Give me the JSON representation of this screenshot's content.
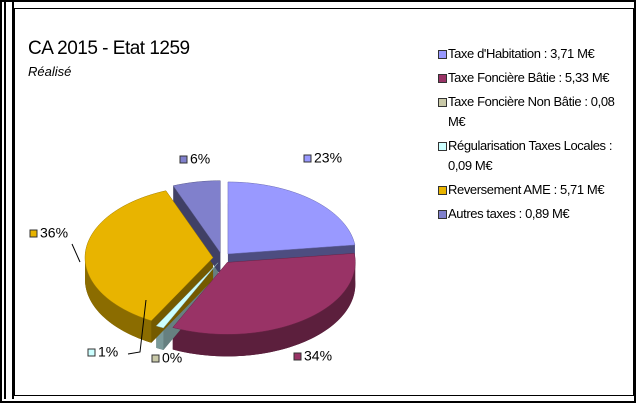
{
  "chart_data": {
    "type": "pie3d",
    "title": "CA 2015 - Etat 1259",
    "subtitle": "Réalisé",
    "categories": [
      "Taxe d'Habitation : 3,71 M€",
      "Taxe Foncière Bâtie : 5,33 M€",
      "Taxe Foncière Non Bâtie : 0,08 M€",
      "Régularisation Taxes Locales : 0,09 M€",
      "Reversement AME : 5,71 M€",
      "Autres taxes : 0,89 M€"
    ],
    "values": [
      23,
      34,
      0,
      1,
      36,
      6
    ],
    "value_labels": [
      "23%",
      "34%",
      "0%",
      "1%",
      "36%",
      "6%"
    ],
    "colors": [
      "#9999ff",
      "#993366",
      "#c9c9a8",
      "#ccffff",
      "#e8b400",
      "#8080cc"
    ],
    "legend": "right"
  }
}
